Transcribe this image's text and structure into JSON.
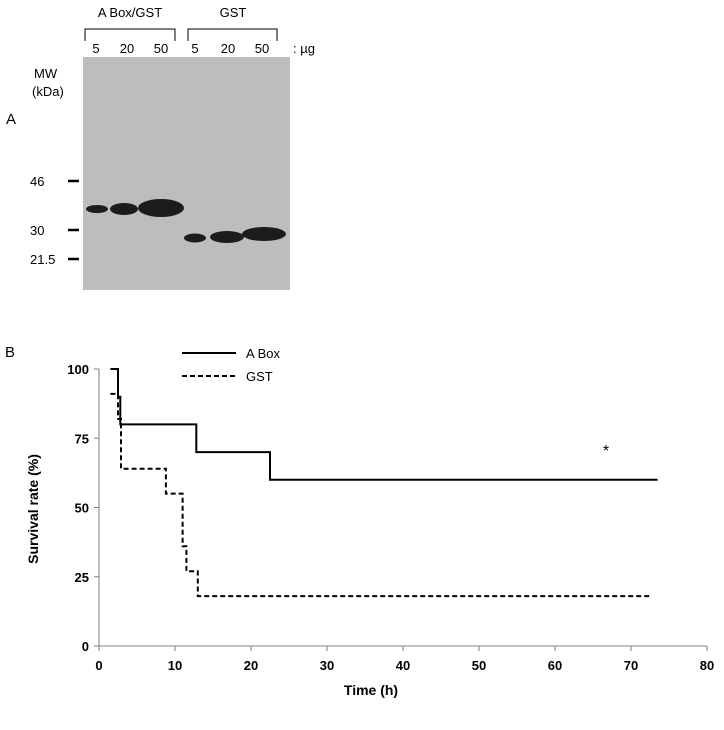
{
  "panel_a": {
    "label": "A",
    "groups": [
      {
        "name": "A Box/GST",
        "lanes": [
          "5",
          "20",
          "50"
        ]
      },
      {
        "name": "GST",
        "lanes": [
          "5",
          "20",
          "50"
        ]
      }
    ],
    "unit_label": ": µg",
    "mw_title_line1": "MW",
    "mw_title_line2": "(kDa)",
    "markers": [
      "46",
      "30",
      "21.5"
    ],
    "gel_background": "#bdbdbd",
    "band_color": "#1c1c1c"
  },
  "panel_b": {
    "label": "B",
    "significance_mark": "*",
    "chart_data": {
      "type": "line",
      "xlabel": "Time (h)",
      "ylabel": "Survival rate (%)",
      "xlim": [
        0,
        80
      ],
      "ylim": [
        0,
        100
      ],
      "xticks": [
        0,
        10,
        20,
        30,
        40,
        50,
        60,
        70,
        80
      ],
      "yticks": [
        0,
        25,
        50,
        75,
        100
      ],
      "legend_position": "top-left",
      "grid": false,
      "series": [
        {
          "name": "A Box",
          "style": "solid",
          "points": [
            [
              1.5,
              100
            ],
            [
              2.5,
              100
            ],
            [
              2.5,
              90
            ],
            [
              2.8,
              90
            ],
            [
              2.8,
              80
            ],
            [
              12.8,
              80
            ],
            [
              12.8,
              70
            ],
            [
              22.5,
              70
            ],
            [
              22.5,
              60
            ],
            [
              73.5,
              60
            ]
          ]
        },
        {
          "name": "GST",
          "style": "dashed",
          "points": [
            [
              1.5,
              91
            ],
            [
              2.5,
              91
            ],
            [
              2.5,
              82
            ],
            [
              2.9,
              82
            ],
            [
              2.9,
              64
            ],
            [
              8.8,
              64
            ],
            [
              8.8,
              55
            ],
            [
              11.0,
              55
            ],
            [
              11.0,
              36
            ],
            [
              11.5,
              36
            ],
            [
              11.5,
              27
            ],
            [
              13.0,
              27
            ],
            [
              13.0,
              18
            ],
            [
              72.5,
              18
            ]
          ]
        }
      ]
    }
  }
}
